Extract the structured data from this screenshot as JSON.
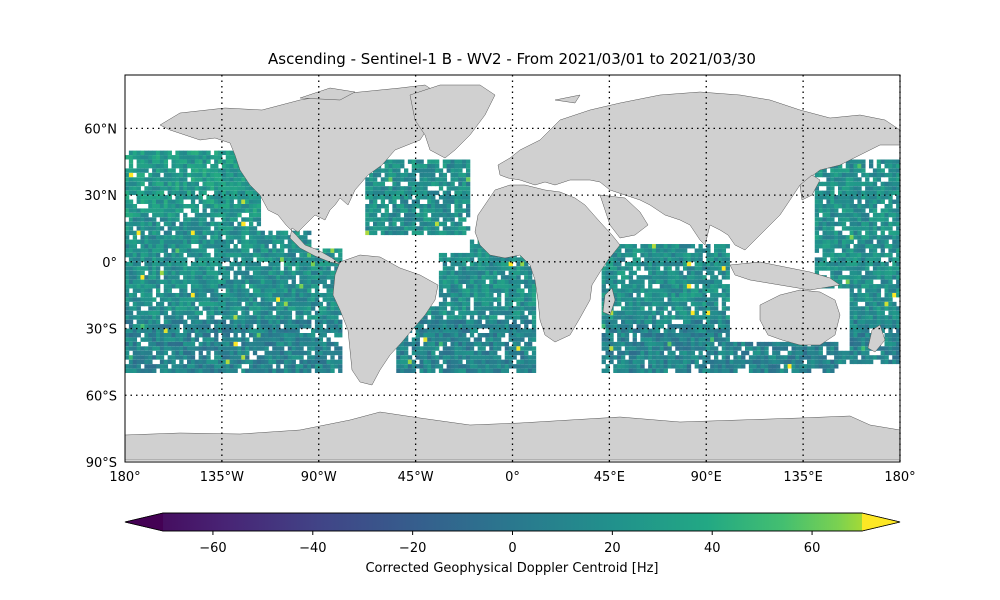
{
  "title": "Ascending - Sentinel-1 B - WV2 - From 2021/03/01 to 2021/03/30",
  "lat_ticks": [
    "60°N",
    "30°N",
    "0°",
    "30°S",
    "60°S",
    "90°S"
  ],
  "lon_ticks": [
    "180°",
    "135°W",
    "90°W",
    "45°W",
    "0°",
    "45°E",
    "90°E",
    "135°E",
    "180°"
  ],
  "colorbar": {
    "label": "Corrected Geophysical Doppler Centroid [Hz]",
    "ticks": [
      "−60",
      "−40",
      "−20",
      "0",
      "20",
      "40",
      "60"
    ],
    "tick_values": [
      -60,
      -40,
      -20,
      0,
      20,
      40,
      60
    ],
    "range": [
      -70,
      70
    ],
    "extend": "both",
    "colormap": "viridis"
  },
  "map": {
    "projection": "PlateCarree",
    "lon_range": [
      -180,
      180
    ],
    "lat_range": [
      -90,
      90
    ],
    "gridlines": "dotted",
    "land_color": "#d0d0d0",
    "data_lat_range": [
      -50,
      50
    ]
  }
}
